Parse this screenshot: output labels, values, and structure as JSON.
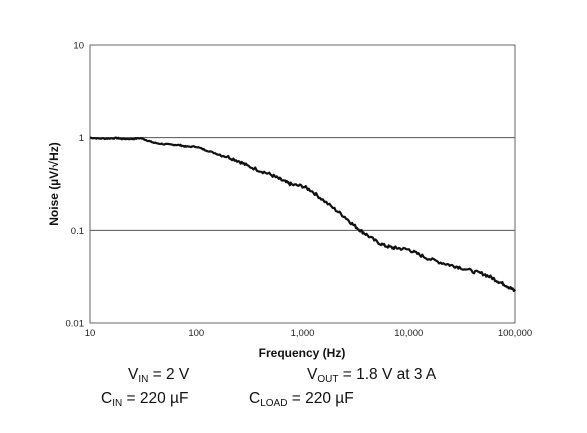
{
  "chart_data": {
    "type": "line",
    "xlabel": "Frequency (Hz)",
    "ylabel": "Noise (µV/√Hz)",
    "xscale": "log",
    "yscale": "log",
    "xlim": [
      10,
      100000
    ],
    "ylim": [
      0.01,
      10
    ],
    "x_tick_labels": [
      "10",
      "100",
      "1,000",
      "10,000",
      "100,000"
    ],
    "y_tick_labels": [
      "10",
      "1",
      "0.1",
      "0.01"
    ],
    "grid": "horizontal major",
    "legend": "none",
    "series": [
      {
        "color": "#111111",
        "x": [
          10,
          12,
          15,
          18,
          20,
          25,
          30,
          35,
          40,
          50,
          60,
          70,
          80,
          100,
          120,
          150,
          200,
          250,
          300,
          400,
          500,
          600,
          700,
          800,
          1000,
          1200,
          1500,
          2000,
          2500,
          3000,
          3500,
          4000,
          5000,
          6000,
          7000,
          8000,
          10000,
          12000,
          15000,
          20000,
          25000,
          30000,
          40000,
          50000,
          60000,
          70000,
          80000,
          90000,
          100000
        ],
        "values": [
          1.0,
          0.98,
          0.98,
          0.99,
          0.97,
          0.97,
          0.99,
          0.93,
          0.88,
          0.85,
          0.84,
          0.83,
          0.8,
          0.8,
          0.74,
          0.68,
          0.62,
          0.56,
          0.5,
          0.44,
          0.4,
          0.36,
          0.33,
          0.31,
          0.3,
          0.27,
          0.22,
          0.17,
          0.14,
          0.115,
          0.1,
          0.09,
          0.075,
          0.068,
          0.065,
          0.064,
          0.062,
          0.056,
          0.05,
          0.045,
          0.042,
          0.04,
          0.036,
          0.034,
          0.031,
          0.028,
          0.026,
          0.024,
          0.022
        ]
      }
    ]
  },
  "conditions": {
    "vin_sub": "IN",
    "vin_value": " = 2 V",
    "vout_sub": "OUT",
    "vout_value": " = 1.8 V at 3 A",
    "cin_sub": "IN",
    "cin_value": " = 220 µF",
    "cload_sub": "LOAD",
    "cload_value": " = 220 µF"
  }
}
